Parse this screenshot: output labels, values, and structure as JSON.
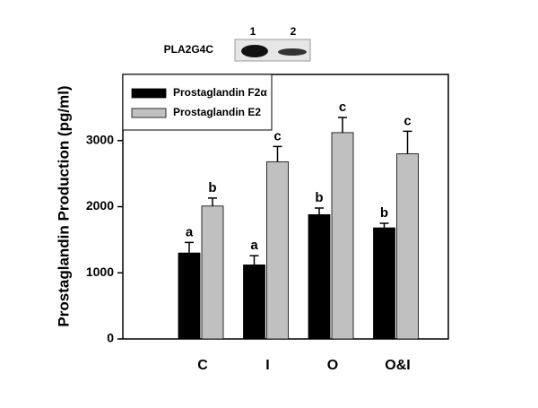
{
  "chart_data": {
    "type": "bar",
    "inset": {
      "label": "PLA2G4C",
      "lanes": [
        "1",
        "2"
      ]
    },
    "ylabel": "Prostaglandin Production (pg/ml)",
    "categories": [
      "C",
      "I",
      "O",
      "O&I"
    ],
    "series": [
      {
        "name": "Prostaglandin F2α",
        "color": "#000000",
        "values": [
          1300,
          1120,
          1880,
          1680
        ],
        "errors": [
          160,
          140,
          100,
          70
        ],
        "letters": [
          "a",
          "a",
          "b",
          "b"
        ]
      },
      {
        "name": "Prostaglandin E2",
        "color": "#c0c0c0",
        "values": [
          2010,
          2680,
          3120,
          2800
        ],
        "errors": [
          120,
          230,
          230,
          340
        ],
        "letters": [
          "b",
          "c",
          "c",
          "c"
        ]
      }
    ],
    "ylim": [
      0,
      4000
    ],
    "yticks": [
      0,
      1000,
      2000,
      3000
    ],
    "legend": "upper left"
  }
}
